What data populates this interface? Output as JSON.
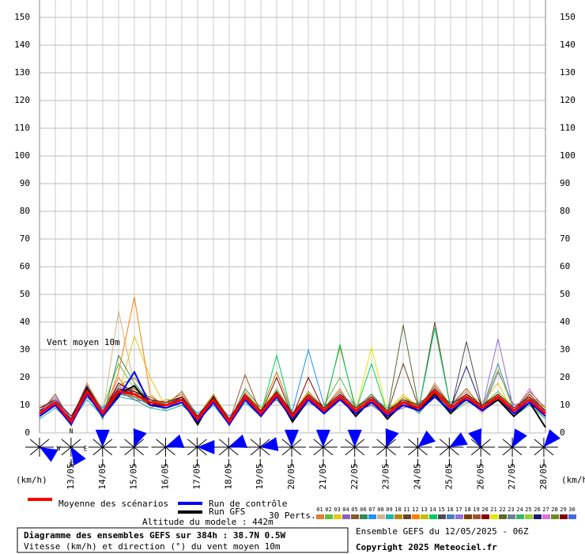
{
  "chart_data": {
    "type": "line",
    "annotation": "Vent moyen 10m",
    "unit_left": "(km/h)",
    "unit_right": "(km/h)",
    "ylim": [
      0,
      150
    ],
    "yticks": [
      0,
      10,
      20,
      30,
      40,
      50,
      60,
      70,
      80,
      90,
      100,
      110,
      120,
      130,
      140,
      150
    ],
    "grid": true,
    "xticks": [
      "13/05",
      "14/05",
      "15/05",
      "16/05",
      "17/05",
      "18/05",
      "19/05",
      "20/05",
      "21/05",
      "22/05",
      "23/05",
      "24/05",
      "25/05",
      "26/05",
      "27/05",
      "28/05"
    ],
    "mean": {
      "name": "Moyenne des scénarios",
      "color": "#ff0000",
      "values": [
        7,
        11,
        4,
        15,
        7,
        15,
        14,
        11,
        10,
        12,
        5,
        12,
        4,
        13,
        7,
        14,
        6,
        13,
        8,
        13,
        8,
        12,
        7,
        11,
        9,
        15,
        9,
        13,
        9,
        13,
        8,
        12,
        7
      ]
    },
    "control": {
      "name": "Run de contrôle",
      "color": "#0000ff",
      "values": [
        6,
        10,
        3,
        14,
        6,
        13,
        22,
        10,
        9,
        11,
        4,
        11,
        3,
        12,
        6,
        13,
        5,
        12,
        7,
        12,
        7,
        11,
        6,
        10,
        8,
        13,
        8,
        12,
        8,
        13,
        7,
        11,
        6
      ]
    },
    "gfs": {
      "name": "Run GFS",
      "color": "#000000",
      "values": [
        7,
        11,
        3,
        16,
        6,
        14,
        17,
        10,
        10,
        12,
        3,
        13,
        3,
        13,
        6,
        14,
        4,
        12,
        7,
        13,
        6,
        12,
        5,
        11,
        8,
        14,
        7,
        13,
        8,
        12,
        6,
        11,
        2
      ]
    },
    "perturbations_label": "30 Perts.",
    "series": [
      {
        "name": "01",
        "color": "#e07b39",
        "values": [
          8,
          13,
          5,
          18,
          8,
          20,
          12,
          9,
          11,
          14,
          4,
          13,
          3,
          15,
          8,
          12,
          5,
          14,
          9,
          16,
          7,
          14,
          5,
          10,
          8,
          18,
          10,
          15,
          8,
          12,
          6,
          14,
          8
        ]
      },
      {
        "name": "02",
        "color": "#5fbf3f",
        "values": [
          6,
          10,
          3,
          14,
          9,
          25,
          16,
          12,
          8,
          10,
          6,
          11,
          5,
          12,
          6,
          16,
          7,
          12,
          10,
          20,
          9,
          11,
          6,
          12,
          10,
          13,
          7,
          11,
          10,
          15,
          9,
          13,
          6
        ]
      },
      {
        "name": "03",
        "color": "#e6c619",
        "values": [
          7,
          12,
          4,
          16,
          6,
          14,
          35,
          20,
          9,
          13,
          5,
          14,
          4,
          12,
          7,
          13,
          6,
          15,
          7,
          12,
          8,
          13,
          8,
          14,
          9,
          16,
          8,
          14,
          11,
          18,
          7,
          11,
          5
        ]
      },
      {
        "name": "04",
        "color": "#8a5fbf",
        "values": [
          9,
          11,
          5,
          13,
          7,
          16,
          13,
          10,
          12,
          11,
          4,
          12,
          5,
          14,
          8,
          15,
          5,
          11,
          8,
          14,
          10,
          12,
          7,
          9,
          11,
          14,
          9,
          12,
          8,
          22,
          10,
          12,
          7
        ]
      },
      {
        "name": "05",
        "color": "#8b5a2b",
        "values": [
          7,
          14,
          4,
          17,
          8,
          18,
          15,
          13,
          10,
          15,
          6,
          13,
          3,
          13,
          6,
          14,
          7,
          13,
          9,
          15,
          8,
          10,
          6,
          13,
          9,
          17,
          10,
          16,
          9,
          13,
          8,
          15,
          9
        ]
      },
      {
        "name": "06",
        "color": "#2e8b57",
        "values": [
          6,
          10,
          3,
          15,
          5,
          28,
          18,
          11,
          9,
          12,
          5,
          11,
          4,
          16,
          9,
          12,
          6,
          14,
          7,
          13,
          9,
          14,
          8,
          12,
          7,
          14,
          11,
          13,
          10,
          14,
          7,
          12,
          6
        ]
      },
      {
        "name": "07",
        "color": "#1e90ff",
        "values": [
          8,
          12,
          6,
          14,
          9,
          15,
          14,
          12,
          11,
          13,
          7,
          12,
          6,
          12,
          8,
          14,
          8,
          30,
          10,
          12,
          7,
          13,
          9,
          11,
          8,
          15,
          9,
          14,
          9,
          12,
          9,
          13,
          8
        ]
      },
      {
        "name": "08",
        "color": "#d2b48c",
        "values": [
          7,
          11,
          5,
          16,
          7,
          44,
          17,
          10,
          10,
          11,
          4,
          13,
          5,
          13,
          7,
          15,
          6,
          13,
          8,
          14,
          8,
          12,
          7,
          11,
          10,
          16,
          8,
          13,
          7,
          14,
          8,
          11,
          7
        ]
      },
      {
        "name": "09",
        "color": "#20b2aa",
        "values": [
          5,
          9,
          4,
          12,
          6,
          13,
          12,
          9,
          8,
          10,
          5,
          10,
          3,
          11,
          6,
          13,
          5,
          12,
          7,
          12,
          7,
          11,
          6,
          10,
          8,
          13,
          7,
          12,
          8,
          12,
          6,
          10,
          5
        ]
      },
      {
        "name": "10",
        "color": "#b8860b",
        "values": [
          8,
          13,
          4,
          17,
          8,
          17,
          20,
          12,
          11,
          14,
          6,
          14,
          5,
          14,
          8,
          22,
          7,
          15,
          9,
          31,
          9,
          13,
          8,
          12,
          9,
          16,
          10,
          14,
          9,
          14,
          9,
          13,
          8
        ]
      },
      {
        "name": "11",
        "color": "#6b4226",
        "values": [
          7,
          12,
          5,
          15,
          7,
          16,
          14,
          11,
          10,
          12,
          5,
          12,
          4,
          13,
          7,
          14,
          6,
          13,
          8,
          13,
          8,
          12,
          7,
          25,
          9,
          40,
          9,
          13,
          9,
          13,
          8,
          12,
          7
        ]
      },
      {
        "name": "12",
        "color": "#ff7f00",
        "values": [
          6,
          11,
          4,
          14,
          6,
          22,
          49,
          14,
          9,
          13,
          5,
          11,
          4,
          12,
          6,
          13,
          6,
          12,
          7,
          12,
          7,
          13,
          6,
          10,
          8,
          14,
          8,
          12,
          8,
          12,
          7,
          11,
          6
        ]
      },
      {
        "name": "13",
        "color": "#c0c000",
        "values": [
          9,
          12,
          5,
          16,
          8,
          15,
          13,
          10,
          12,
          12,
          6,
          13,
          5,
          14,
          9,
          15,
          7,
          14,
          9,
          14,
          9,
          12,
          8,
          13,
          10,
          15,
          10,
          14,
          10,
          14,
          9,
          13,
          9
        ]
      },
      {
        "name": "14",
        "color": "#00cc66",
        "values": [
          7,
          11,
          4,
          15,
          7,
          15,
          14,
          11,
          10,
          12,
          5,
          12,
          4,
          13,
          7,
          28,
          6,
          13,
          8,
          32,
          8,
          25,
          7,
          11,
          9,
          38,
          9,
          13,
          9,
          13,
          8,
          12,
          7
        ]
      },
      {
        "name": "15",
        "color": "#4d4d4d",
        "values": [
          8,
          10,
          4,
          13,
          8,
          14,
          15,
          12,
          9,
          11,
          6,
          12,
          5,
          12,
          7,
          13,
          7,
          12,
          8,
          12,
          9,
          11,
          7,
          12,
          9,
          14,
          8,
          33,
          9,
          12,
          8,
          11,
          7
        ]
      },
      {
        "name": "16",
        "color": "#4682b4",
        "values": [
          7,
          13,
          5,
          15,
          6,
          16,
          13,
          10,
          11,
          13,
          5,
          12,
          4,
          14,
          7,
          15,
          6,
          14,
          8,
          14,
          7,
          13,
          7,
          11,
          9,
          15,
          9,
          14,
          9,
          25,
          8,
          13,
          7
        ]
      },
      {
        "name": "17",
        "color": "#9370db",
        "values": [
          6,
          12,
          4,
          14,
          7,
          17,
          14,
          11,
          10,
          12,
          5,
          13,
          4,
          13,
          6,
          14,
          6,
          13,
          8,
          13,
          8,
          12,
          7,
          11,
          8,
          14,
          9,
          13,
          9,
          34,
          8,
          12,
          6
        ]
      },
      {
        "name": "18",
        "color": "#7b3f00",
        "values": [
          8,
          11,
          5,
          16,
          7,
          15,
          16,
          12,
          10,
          12,
          6,
          12,
          5,
          13,
          7,
          14,
          7,
          13,
          9,
          13,
          8,
          12,
          8,
          11,
          9,
          15,
          9,
          13,
          10,
          13,
          8,
          14,
          8
        ]
      },
      {
        "name": "19",
        "color": "#a0522d",
        "values": [
          7,
          12,
          4,
          15,
          8,
          14,
          14,
          11,
          9,
          12,
          5,
          12,
          4,
          21,
          7,
          14,
          6,
          13,
          8,
          13,
          8,
          12,
          7,
          11,
          9,
          15,
          9,
          13,
          9,
          13,
          8,
          12,
          7
        ]
      },
      {
        "name": "20",
        "color": "#8b0000",
        "values": [
          7,
          11,
          4,
          15,
          7,
          18,
          14,
          11,
          10,
          12,
          5,
          12,
          4,
          13,
          7,
          20,
          6,
          20,
          8,
          13,
          8,
          12,
          7,
          11,
          9,
          15,
          9,
          13,
          9,
          13,
          8,
          12,
          7
        ]
      },
      {
        "name": "21",
        "color": "#e6e600",
        "values": [
          6,
          11,
          3,
          15,
          7,
          15,
          12,
          11,
          10,
          12,
          5,
          12,
          4,
          13,
          7,
          14,
          6,
          13,
          8,
          13,
          8,
          31,
          7,
          11,
          9,
          15,
          9,
          13,
          9,
          13,
          8,
          12,
          7
        ]
      },
      {
        "name": "22",
        "color": "#556b2f",
        "values": [
          7,
          10,
          4,
          14,
          7,
          15,
          14,
          10,
          10,
          11,
          5,
          12,
          4,
          12,
          7,
          14,
          6,
          13,
          8,
          13,
          8,
          12,
          7,
          39,
          9,
          15,
          9,
          13,
          9,
          13,
          8,
          12,
          7
        ]
      },
      {
        "name": "23",
        "color": "#708090",
        "values": [
          8,
          12,
          5,
          16,
          6,
          14,
          13,
          12,
          9,
          13,
          4,
          11,
          5,
          12,
          8,
          13,
          7,
          12,
          9,
          14,
          7,
          13,
          8,
          12,
          8,
          16,
          10,
          14,
          8,
          14,
          9,
          13,
          8
        ]
      },
      {
        "name": "24",
        "color": "#3cb371",
        "values": [
          6,
          11,
          4,
          14,
          8,
          16,
          15,
          10,
          11,
          12,
          6,
          13,
          3,
          14,
          6,
          15,
          5,
          14,
          7,
          12,
          9,
          11,
          6,
          10,
          10,
          14,
          8,
          12,
          10,
          12,
          7,
          11,
          6
        ]
      },
      {
        "name": "25",
        "color": "#9acd32",
        "values": [
          7,
          12,
          4,
          15,
          7,
          15,
          14,
          11,
          10,
          12,
          5,
          12,
          4,
          13,
          7,
          14,
          6,
          13,
          8,
          13,
          8,
          12,
          7,
          11,
          9,
          15,
          9,
          13,
          9,
          23,
          8,
          12,
          7
        ]
      },
      {
        "name": "26",
        "color": "#191970",
        "values": [
          8,
          11,
          5,
          17,
          7,
          16,
          14,
          11,
          10,
          13,
          5,
          12,
          4,
          13,
          7,
          14,
          6,
          13,
          8,
          13,
          8,
          12,
          7,
          11,
          9,
          15,
          9,
          24,
          9,
          13,
          8,
          12,
          7
        ]
      },
      {
        "name": "27",
        "color": "#da70d6",
        "values": [
          7,
          13,
          4,
          15,
          7,
          15,
          14,
          11,
          10,
          12,
          5,
          12,
          4,
          13,
          7,
          14,
          6,
          13,
          8,
          13,
          8,
          12,
          7,
          11,
          9,
          15,
          9,
          13,
          9,
          13,
          8,
          16,
          7
        ]
      },
      {
        "name": "28",
        "color": "#6b8e23",
        "values": [
          6,
          10,
          4,
          14,
          6,
          14,
          13,
          10,
          9,
          11,
          4,
          11,
          3,
          12,
          6,
          13,
          5,
          12,
          7,
          12,
          7,
          11,
          6,
          10,
          8,
          14,
          8,
          12,
          8,
          12,
          7,
          11,
          6
        ]
      },
      {
        "name": "29",
        "color": "#800000",
        "values": [
          9,
          12,
          6,
          16,
          8,
          16,
          15,
          12,
          11,
          13,
          6,
          13,
          5,
          14,
          8,
          15,
          7,
          14,
          9,
          14,
          9,
          13,
          8,
          12,
          10,
          16,
          10,
          14,
          10,
          14,
          9,
          13,
          8
        ]
      },
      {
        "name": "30",
        "color": "#4169e1",
        "values": [
          7,
          12,
          4,
          15,
          8,
          15,
          12,
          11,
          10,
          12,
          5,
          12,
          4,
          13,
          7,
          14,
          6,
          13,
          8,
          13,
          8,
          12,
          7,
          11,
          9,
          15,
          9,
          13,
          9,
          13,
          8,
          12,
          7
        ]
      }
    ],
    "directions": [
      300,
      330,
      180,
      200,
      250,
      270,
      250,
      260,
      180,
      180,
      180,
      200,
      230,
      240,
      160,
      210,
      220
    ],
    "compass": [
      "N",
      "W",
      "E",
      "S"
    ],
    "altitude": "Altitude du modele : 442m",
    "title": "Diagramme des ensembles GEFS sur 384h : 38.7N 0.5W",
    "subtitle": "Vitesse (km/h) et direction (°) du vent moyen 10m",
    "run": "Ensemble GEFS du 12/05/2025 - 06Z",
    "copyright": "Copyright 2025 Meteociel.fr"
  }
}
